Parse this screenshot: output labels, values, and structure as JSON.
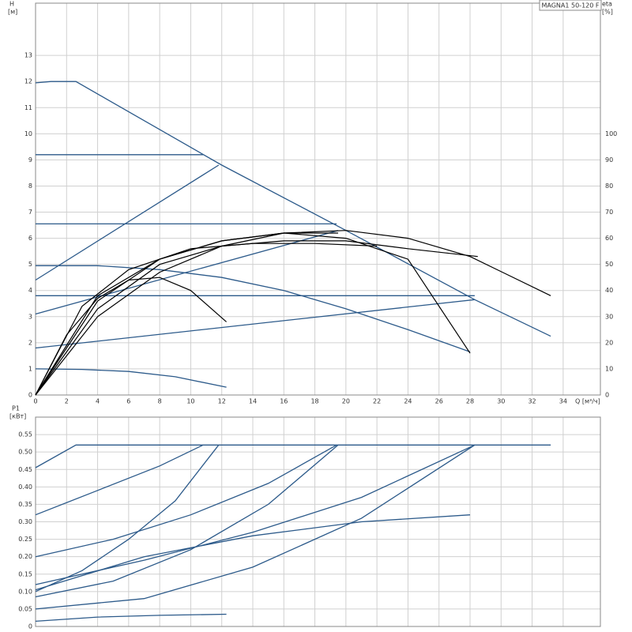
{
  "chart_data": [
    {
      "type": "line",
      "title": "MAGNA1 50-120 F",
      "y_label": "H",
      "y_unit": "[м]",
      "y2_label": "eta",
      "y2_unit": "[%]",
      "x_label": "Q [м³/ч]",
      "xlim": [
        0,
        36.4
      ],
      "xticks": [
        0,
        2,
        4,
        6,
        8,
        10,
        12,
        14,
        16,
        18,
        20,
        22,
        24,
        26,
        28,
        30,
        32,
        34
      ],
      "ylim": [
        0,
        15
      ],
      "yticks": [
        0,
        1,
        2,
        3,
        4,
        5,
        6,
        7,
        8,
        9,
        10,
        11,
        12,
        13
      ],
      "y2lim": [
        0,
        150
      ],
      "y2ticks": [
        0,
        10,
        20,
        30,
        40,
        50,
        60,
        70,
        80,
        90,
        100
      ],
      "grid": true,
      "series": [
        {
          "color": "#2c5a8a",
          "x": [
            0,
            1,
            2.6,
            12,
            20,
            28.3,
            33.2
          ],
          "values": [
            11.95,
            12,
            12,
            8.8,
            6.3,
            3.65,
            2.25
          ]
        },
        {
          "color": "#2c5a8a",
          "x": [
            0,
            10.8
          ],
          "values": [
            9.2,
            9.2
          ]
        },
        {
          "color": "#2c5a8a",
          "x": [
            0,
            19.4
          ],
          "values": [
            6.55,
            6.55
          ]
        },
        {
          "color": "#2c5a8a",
          "x": [
            0,
            28.3
          ],
          "values": [
            3.8,
            3.8
          ]
        },
        {
          "color": "#2c5a8a",
          "x": [
            0,
            11.8
          ],
          "values": [
            4.4,
            8.8
          ]
        },
        {
          "color": "#2c5a8a",
          "x": [
            0,
            19.5
          ],
          "values": [
            3.1,
            6.3
          ]
        },
        {
          "color": "#2c5a8a",
          "x": [
            0,
            28.3
          ],
          "values": [
            1.8,
            3.65
          ]
        },
        {
          "color": "#2c5a8a",
          "x": [
            0,
            4,
            8,
            12,
            16,
            20,
            24,
            28
          ],
          "values": [
            4.95,
            4.95,
            4.8,
            4.5,
            4.0,
            3.3,
            2.5,
            1.65
          ]
        },
        {
          "color": "#2c5a8a",
          "x": [
            0,
            3,
            6,
            9,
            12.3
          ],
          "values": [
            1,
            0.98,
            0.9,
            0.7,
            0.3
          ]
        },
        {
          "color": "#000000",
          "axis": "y2",
          "x": [
            0,
            4,
            8,
            12,
            16,
            20,
            24,
            28,
            33.2
          ],
          "values": [
            0,
            30,
            47,
            57,
            62,
            63,
            60,
            53,
            38
          ]
        },
        {
          "color": "#000000",
          "axis": "y2",
          "x": [
            0,
            2,
            4,
            6,
            8,
            10,
            12.3
          ],
          "values": [
            0,
            23,
            37,
            44,
            45,
            40,
            28
          ]
        },
        {
          "color": "#000000",
          "axis": "y2",
          "x": [
            0,
            4,
            8,
            12,
            16,
            20,
            24,
            28.5
          ],
          "values": [
            0,
            33,
            50,
            57,
            59,
            59,
            56,
            53
          ]
        },
        {
          "color": "#000000",
          "axis": "y2",
          "x": [
            0,
            4,
            8,
            12,
            16,
            20,
            24,
            28
          ],
          "values": [
            0,
            36,
            52,
            59,
            62,
            60,
            52,
            16
          ]
        },
        {
          "color": "#000000",
          "axis": "y2",
          "x": [
            0,
            3,
            6,
            10,
            14,
            18,
            22
          ],
          "values": [
            0,
            34,
            48,
            56,
            58,
            58,
            57
          ]
        },
        {
          "color": "#000000",
          "axis": "y2",
          "x": [
            0,
            4,
            8,
            12,
            16,
            19.5
          ],
          "values": [
            0,
            38,
            52,
            59,
            62,
            62
          ]
        }
      ]
    },
    {
      "type": "line",
      "y_label": "P1",
      "y_unit": "[кВт]",
      "ylim": [
        0,
        0.6
      ],
      "yticks": [
        0,
        0.05,
        {
          "value": 0.1,
          "label": "0.10"
        },
        0.15,
        {
          "value": 0.2,
          "label": "0.20"
        },
        0.25,
        {
          "value": 0.3,
          "label": "0.30"
        },
        0.35,
        {
          "value": 0.4,
          "label": "0.40"
        },
        0.45,
        {
          "value": 0.5,
          "label": "0.50"
        },
        0.55
      ],
      "grid": true,
      "series": [
        {
          "color": "#2c5a8a",
          "x": [
            0,
            2.6,
            33.2
          ],
          "values": [
            0.455,
            0.52,
            0.52
          ]
        },
        {
          "color": "#2c5a8a",
          "x": [
            0,
            4,
            8,
            10.8
          ],
          "values": [
            0.32,
            0.39,
            0.46,
            0.52
          ]
        },
        {
          "color": "#2c5a8a",
          "x": [
            0,
            3,
            6,
            9,
            11.8
          ],
          "values": [
            0.1,
            0.16,
            0.25,
            0.36,
            0.52
          ]
        },
        {
          "color": "#2c5a8a",
          "x": [
            0,
            5,
            10,
            15,
            19.4
          ],
          "values": [
            0.2,
            0.25,
            0.32,
            0.41,
            0.52
          ]
        },
        {
          "color": "#2c5a8a",
          "x": [
            0,
            5,
            10,
            15,
            19.5
          ],
          "values": [
            0.085,
            0.13,
            0.22,
            0.35,
            0.52
          ]
        },
        {
          "color": "#2c5a8a",
          "x": [
            0,
            7,
            14,
            21,
            28.3
          ],
          "values": [
            0.12,
            0.19,
            0.27,
            0.37,
            0.52
          ]
        },
        {
          "color": "#2c5a8a",
          "x": [
            0,
            7,
            14,
            21,
            28.3
          ],
          "values": [
            0.05,
            0.08,
            0.17,
            0.31,
            0.52
          ]
        },
        {
          "color": "#2c5a8a",
          "x": [
            0,
            7,
            14,
            21,
            28
          ],
          "values": [
            0.105,
            0.2,
            0.26,
            0.3,
            0.32
          ]
        },
        {
          "color": "#2c5a8a",
          "x": [
            0,
            4,
            8,
            12.3
          ],
          "values": [
            0.015,
            0.027,
            0.032,
            0.035
          ]
        }
      ]
    }
  ]
}
